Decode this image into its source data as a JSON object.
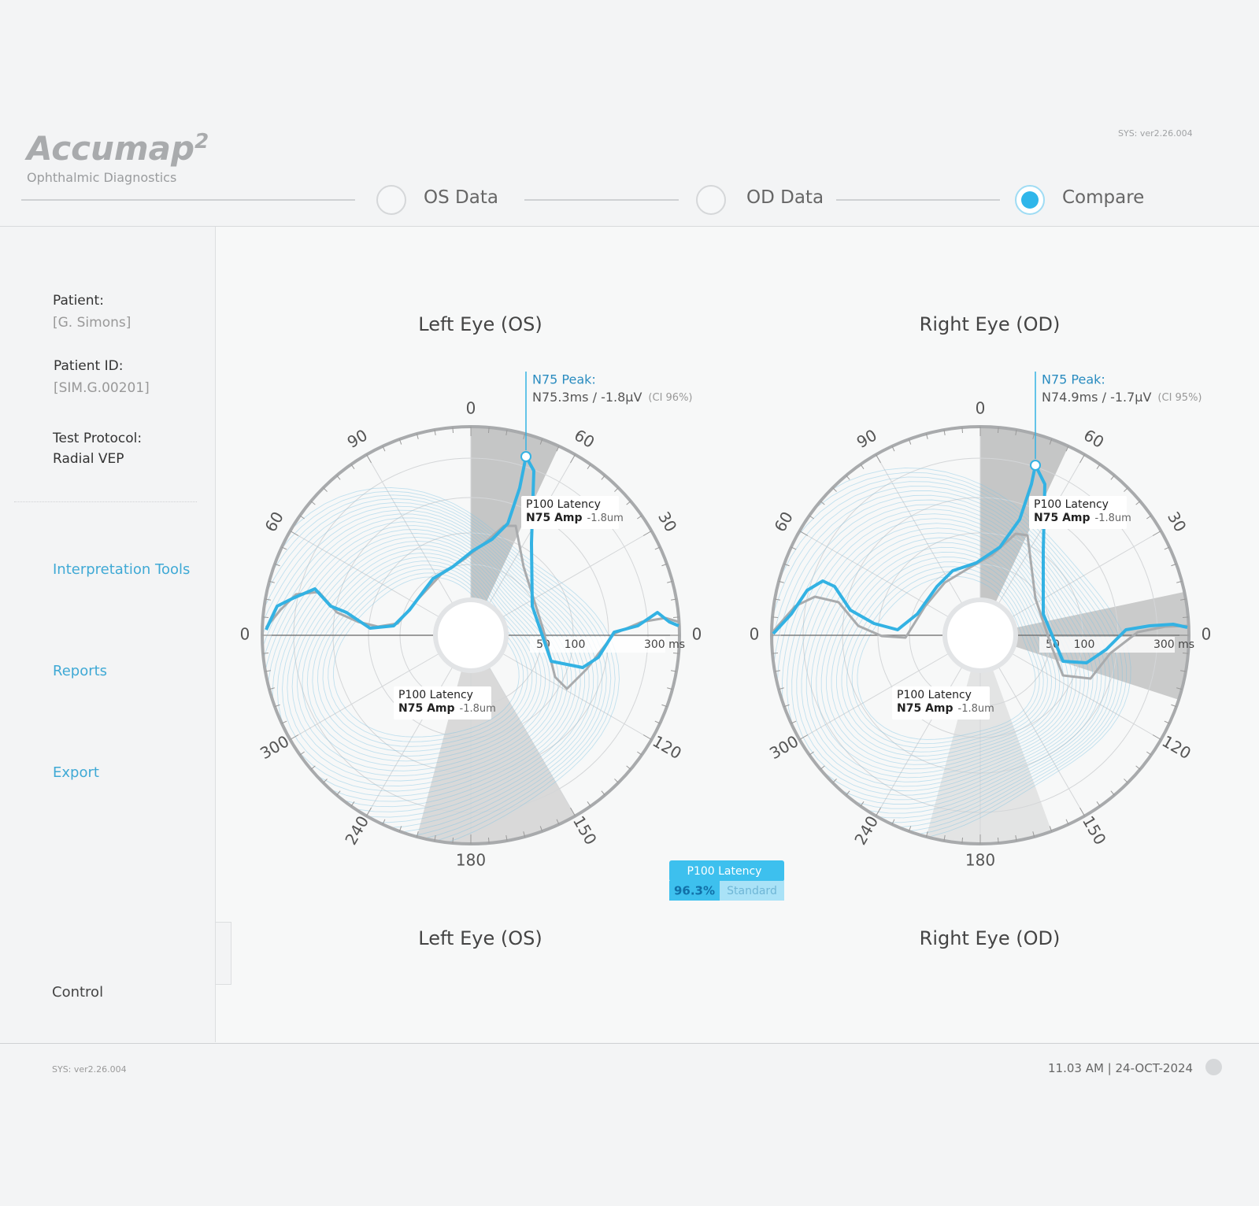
{
  "header": {
    "logo": "Accumap",
    "logo_sup": "2",
    "subtitle": "Ophthalmic Diagnostics",
    "version": "SYS: ver2.26.004",
    "steps": [
      "OS Data",
      "OD Data",
      "Compare"
    ]
  },
  "sidebar": {
    "patient_label": "Patient:",
    "patient": "[G. Simons]",
    "id_label": "Patient ID:",
    "id": "[SIM.G.00201]",
    "protocol_label": "Test Protocol:",
    "protocol": "Radial VEP",
    "nav": [
      "Interpretation Tools",
      "Reports",
      "Export"
    ],
    "control": "Control"
  },
  "charts": [
    {
      "title": "Left Eye (OS)",
      "angle_labels": [
        0,
        60,
        30,
        0,
        120,
        150,
        180,
        240,
        300,
        0,
        60,
        90
      ],
      "radial_labels": [
        "50",
        "100",
        "300 ms"
      ],
      "peak": {
        "title": "N75 Peak:",
        "value": "N75.3ms / -1.8µV",
        "ci": "(CI 96%)"
      },
      "callouts": [
        {
          "line1": "P100 Latency",
          "line2": "N75 Amp",
          "value": "-1.8um"
        },
        {
          "line1": "P100 Latency",
          "line2": "N75 Amp",
          "value": "-1.8um"
        }
      ],
      "footer_title": "Left Eye (OS)"
    },
    {
      "title": "Right Eye (OD)",
      "angle_labels": [
        0,
        60,
        30,
        0,
        120,
        150,
        180,
        240,
        300,
        0,
        60,
        90
      ],
      "radial_labels": [
        "50",
        "100",
        "300 ms"
      ],
      "peak": {
        "title": "N75 Peak:",
        "value": "N74.9ms / -1.7µV",
        "ci": "(CI 95%)"
      },
      "callouts": [
        {
          "line1": "P100 Latency",
          "line2": "N75 Amp",
          "value": "-1.8um"
        },
        {
          "line1": "P100 Latency",
          "line2": "N75 Amp",
          "value": "-1.8um"
        }
      ],
      "footer_title": "Right Eye (OD)"
    }
  ],
  "badge": {
    "title": "P100 Latency",
    "value": "96.3%",
    "label": "Standard"
  },
  "footer": {
    "version": "SYS: ver2.26.004",
    "datetime": "11.03 AM | 24-OCT-2024"
  }
}
